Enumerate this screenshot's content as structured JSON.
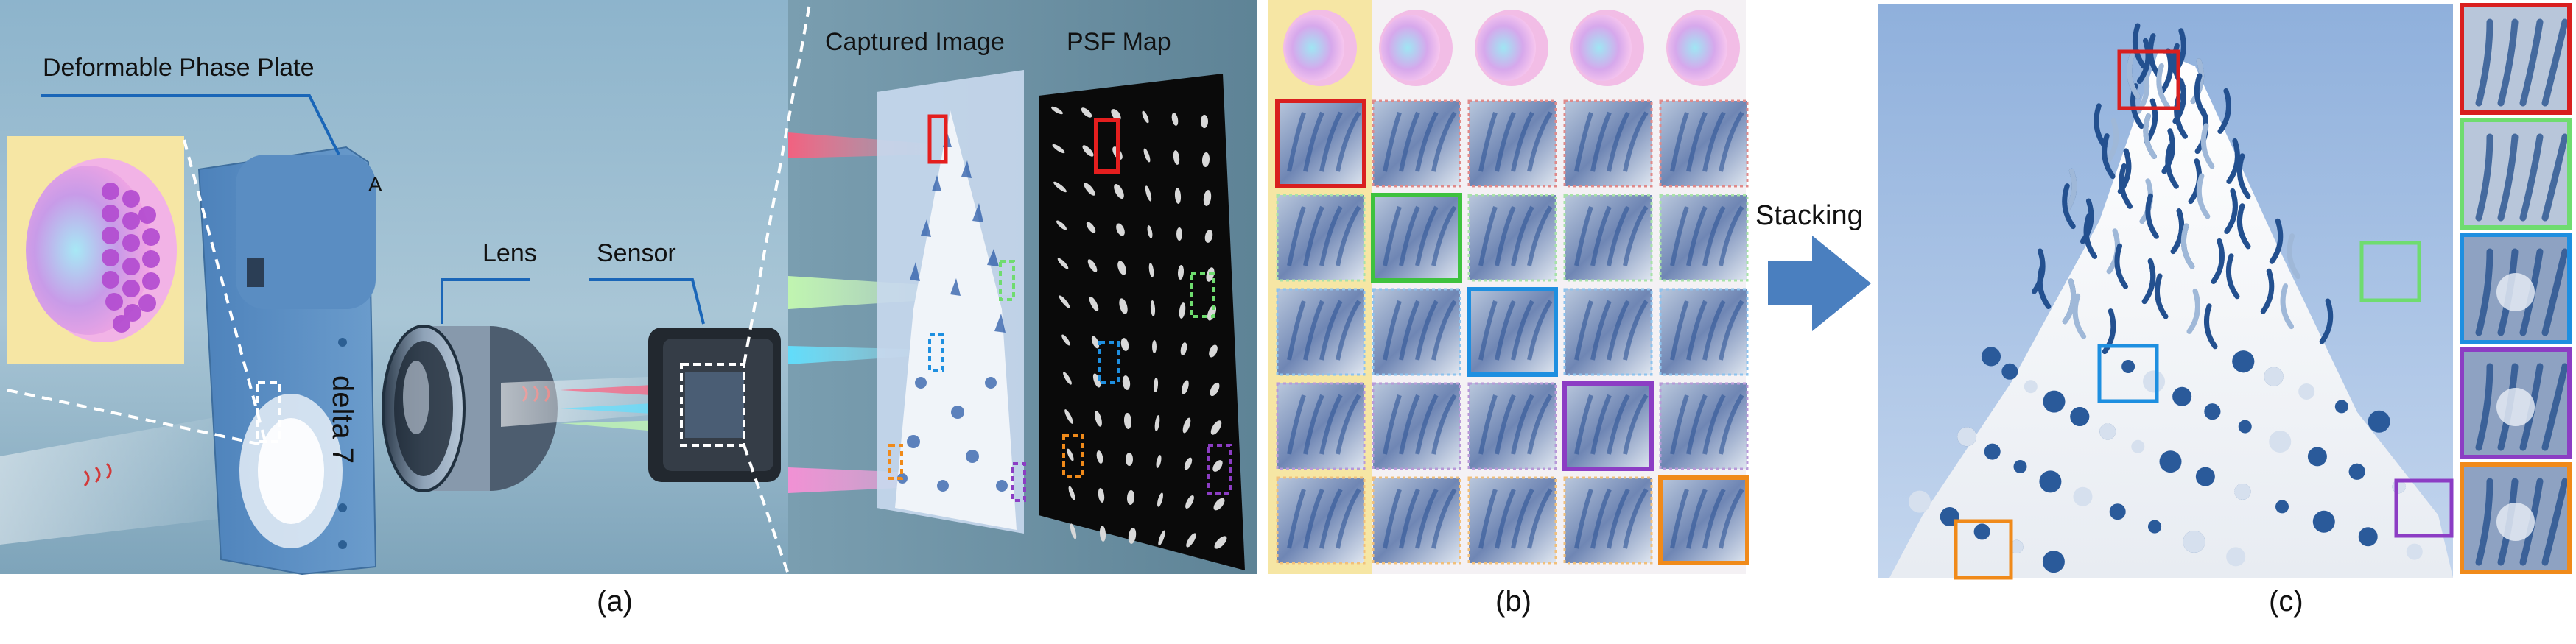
{
  "panel_a": {
    "caption": "(a)",
    "labels": {
      "phase_plate": "Deformable Phase Plate",
      "lens": "Lens",
      "sensor": "Sensor",
      "captured_image": "Captured Image",
      "psf_map": "PSF Map",
      "device_brand": "delta 7",
      "device_mark": "A"
    },
    "colors": {
      "background": "#8fb5c9",
      "device": "#5b8fc4",
      "phase_plate_bg": "#f6e6a4",
      "callout_line": "#1a66b8"
    }
  },
  "panel_b": {
    "caption": "(b)",
    "grid_rows": 6,
    "grid_cols": 5,
    "highlight_colors": [
      "#d91f1f",
      "#3ec23e",
      "#1e8fe0",
      "#8c3dc4",
      "#f08a1a"
    ]
  },
  "arrow": {
    "label": "Stacking",
    "color": "#4a7fbf"
  },
  "panel_c": {
    "caption": "(c)",
    "crop_colors": [
      "#d91f1f",
      "#6fdc6f",
      "#1e8fe0",
      "#8c3dc4",
      "#f08a1a"
    ]
  }
}
